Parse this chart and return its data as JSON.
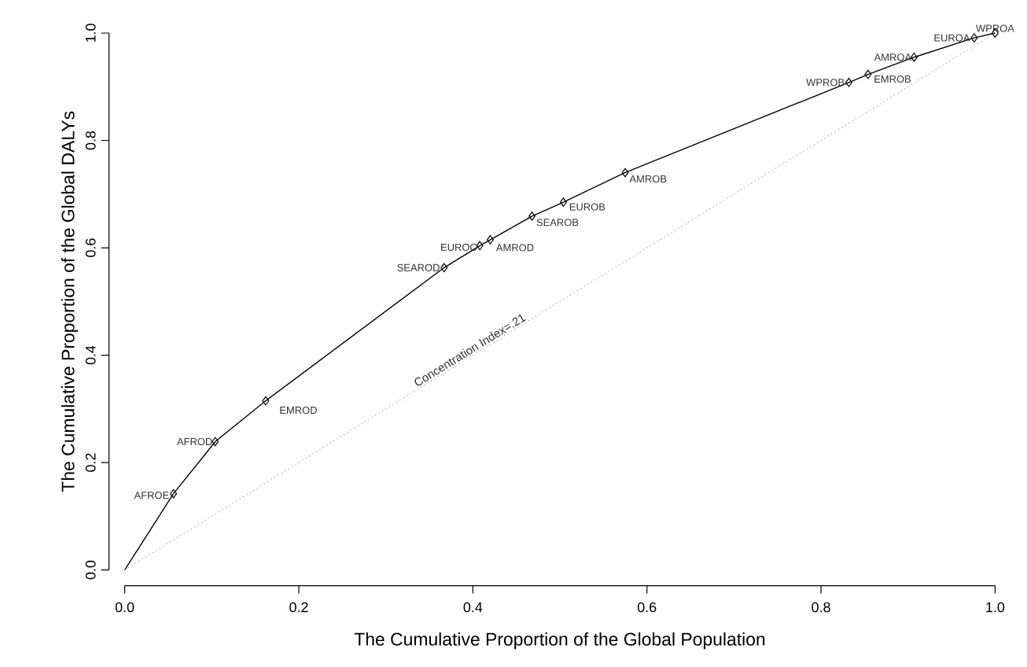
{
  "chart_data": {
    "type": "line",
    "xlabel": "The Cumulative Proportion of the Global Population",
    "ylabel": "The Cumulative Proportion of the Global DALYs",
    "xlim": [
      0,
      1
    ],
    "ylim": [
      0,
      1
    ],
    "xticks": [
      {
        "value": 0,
        "label": "0.0"
      },
      {
        "value": 0.2,
        "label": "0.2"
      },
      {
        "value": 0.4,
        "label": "0.4"
      },
      {
        "value": 0.6,
        "label": "0.6"
      },
      {
        "value": 0.8,
        "label": "0.8"
      },
      {
        "value": 1,
        "label": "1.0"
      }
    ],
    "yticks": [
      {
        "value": 0,
        "label": "0.0"
      },
      {
        "value": 0.2,
        "label": "0.2"
      },
      {
        "value": 0.4,
        "label": "0.4"
      },
      {
        "value": 0.6,
        "label": "0.6"
      },
      {
        "value": 0.8,
        "label": "0.8"
      },
      {
        "value": 1,
        "label": "1.0"
      }
    ],
    "series": [
      {
        "color": "#000000",
        "x": [
          0,
          0.056,
          0.104,
          0.162,
          0.367,
          0.408,
          0.42,
          0.468,
          0.504,
          0.575,
          0.832,
          0.854,
          0.907,
          0.976,
          1.0
        ],
        "values": [
          0,
          0.142,
          0.239,
          0.315,
          0.563,
          0.604,
          0.615,
          0.659,
          0.685,
          0.74,
          0.908,
          0.923,
          0.955,
          0.991,
          1.0
        ]
      },
      {
        "type": "scatter",
        "marker": "diamond",
        "color": "#000000",
        "x": [
          0.056,
          0.104,
          0.162,
          0.367,
          0.408,
          0.42,
          0.468,
          0.504,
          0.575,
          0.832,
          0.854,
          0.907,
          0.976,
          1.0
        ],
        "values": [
          0.142,
          0.239,
          0.315,
          0.563,
          0.604,
          0.615,
          0.659,
          0.685,
          0.74,
          0.908,
          0.923,
          0.955,
          0.991,
          1.0
        ]
      },
      {
        "color": "#808080",
        "line_style": "dotted",
        "x": [
          0,
          1
        ],
        "values": [
          0,
          1
        ]
      }
    ],
    "annotations": [
      {
        "text": "AFROE",
        "x": 0.056,
        "y": 0.142
      },
      {
        "text": "AFROD",
        "x": 0.104,
        "y": 0.239
      },
      {
        "text": "EMROD",
        "x": 0.162,
        "y": 0.315
      },
      {
        "text": "SEAROD",
        "x": 0.367,
        "y": 0.563
      },
      {
        "text": "EUROC",
        "x": 0.408,
        "y": 0.604
      },
      {
        "text": "AMROD",
        "x": 0.42,
        "y": 0.615
      },
      {
        "text": "SEAROB",
        "x": 0.468,
        "y": 0.659
      },
      {
        "text": "EUROB",
        "x": 0.504,
        "y": 0.685
      },
      {
        "text": "AMROB",
        "x": 0.575,
        "y": 0.74
      },
      {
        "text": "WPROB",
        "x": 0.832,
        "y": 0.908
      },
      {
        "text": "EMROB",
        "x": 0.854,
        "y": 0.923
      },
      {
        "text": "AMROA",
        "x": 0.907,
        "y": 0.955
      },
      {
        "text": "EUROA",
        "x": 0.976,
        "y": 0.991
      },
      {
        "text": "WPROA",
        "x": 1.0,
        "y": 1.0
      },
      "Concentration Index=.21"
    ]
  }
}
